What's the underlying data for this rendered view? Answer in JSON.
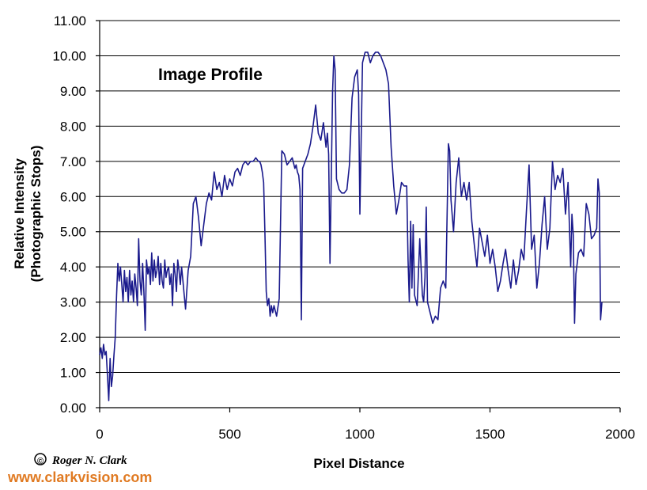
{
  "chart_data": {
    "type": "line",
    "title": "Image Profile",
    "xlabel": "Pixel Distance",
    "ylabel_line1": "Relative Intensity",
    "ylabel_line2": "(Photographic Stops)",
    "xlim": [
      0,
      2000
    ],
    "ylim": [
      0,
      11
    ],
    "xticks": [
      "0",
      "500",
      "1000",
      "1500",
      "2000"
    ],
    "yticks": [
      "0.00",
      "1.00",
      "2.00",
      "3.00",
      "4.00",
      "5.00",
      "6.00",
      "7.00",
      "8.00",
      "9.00",
      "10.00",
      "11.00"
    ],
    "grid": "horizontal",
    "line_color": "#1a1a8c",
    "series": [
      {
        "x": [
          0,
          5,
          10,
          15,
          20,
          25,
          30,
          35,
          40,
          45,
          50,
          55,
          60,
          65,
          70,
          75,
          80,
          85,
          90,
          95,
          100,
          105,
          110,
          115,
          120,
          125,
          130,
          135,
          140,
          145,
          150,
          155,
          160,
          165,
          170,
          175,
          180,
          185,
          190,
          195,
          200,
          205,
          210,
          215,
          220,
          225,
          230,
          235,
          240,
          245,
          250,
          255,
          260,
          265,
          270,
          275,
          280,
          285,
          290,
          295,
          300,
          305,
          310,
          315,
          320,
          325,
          330,
          340,
          350,
          360,
          370,
          380,
          390,
          400,
          410,
          420,
          430,
          440,
          450,
          460,
          470,
          480,
          490,
          500,
          510,
          520,
          530,
          540,
          550,
          560,
          570,
          580,
          590,
          600,
          610,
          615,
          620,
          625,
          630,
          635,
          640,
          645,
          650,
          655,
          660,
          665,
          670,
          680,
          690,
          700,
          710,
          720,
          730,
          740,
          750,
          755,
          760,
          765,
          770,
          775,
          780,
          790,
          800,
          810,
          820,
          830,
          840,
          850,
          860,
          870,
          875,
          880,
          885,
          890,
          895,
          900,
          905,
          910,
          920,
          930,
          940,
          950,
          960,
          970,
          980,
          990,
          995,
          1000,
          1005,
          1010,
          1020,
          1030,
          1040,
          1050,
          1060,
          1070,
          1080,
          1090,
          1100,
          1110,
          1120,
          1130,
          1140,
          1150,
          1160,
          1170,
          1180,
          1185,
          1190,
          1195,
          1200,
          1205,
          1210,
          1220,
          1230,
          1240,
          1245,
          1250,
          1255,
          1260,
          1270,
          1280,
          1290,
          1300,
          1310,
          1320,
          1330,
          1340,
          1345,
          1350,
          1360,
          1370,
          1380,
          1390,
          1400,
          1410,
          1420,
          1430,
          1440,
          1450,
          1460,
          1470,
          1480,
          1490,
          1500,
          1510,
          1520,
          1530,
          1540,
          1550,
          1560,
          1570,
          1580,
          1590,
          1600,
          1610,
          1620,
          1630,
          1640,
          1650,
          1660,
          1670,
          1680,
          1690,
          1700,
          1710,
          1720,
          1730,
          1740,
          1750,
          1760,
          1770,
          1780,
          1790,
          1800,
          1810,
          1815,
          1820,
          1825,
          1830,
          1840,
          1850,
          1860,
          1870,
          1880,
          1890,
          1900,
          1910,
          1915,
          1920,
          1925,
          1930
        ],
        "y": [
          1.5,
          1.7,
          1.4,
          1.8,
          1.5,
          1.6,
          0.9,
          0.2,
          1.4,
          0.6,
          0.9,
          1.5,
          2.0,
          3.2,
          4.1,
          3.6,
          4.0,
          3.5,
          3.0,
          3.9,
          3.3,
          3.7,
          3.0,
          3.9,
          3.2,
          3.6,
          3.0,
          3.8,
          3.4,
          2.9,
          4.8,
          3.6,
          3.2,
          4.1,
          3.3,
          2.2,
          4.2,
          3.8,
          4.0,
          3.5,
          4.4,
          3.6,
          4.2,
          3.7,
          3.9,
          4.3,
          3.5,
          4.1,
          3.6,
          3.4,
          4.2,
          3.7,
          3.9,
          4.0,
          3.5,
          3.8,
          2.9,
          4.1,
          3.8,
          3.3,
          4.2,
          3.9,
          3.5,
          4.0,
          3.6,
          3.2,
          2.8,
          3.9,
          4.3,
          5.8,
          6.0,
          5.4,
          4.6,
          5.2,
          5.8,
          6.1,
          5.9,
          6.7,
          6.2,
          6.4,
          6.0,
          6.6,
          6.2,
          6.5,
          6.3,
          6.7,
          6.8,
          6.6,
          6.9,
          7.0,
          6.9,
          7.0,
          7.0,
          7.1,
          7.0,
          7.0,
          6.9,
          6.7,
          6.4,
          5.0,
          3.3,
          2.9,
          3.1,
          2.6,
          2.9,
          2.7,
          2.9,
          2.6,
          3.1,
          7.3,
          7.2,
          6.9,
          7.0,
          7.1,
          6.8,
          6.9,
          6.7,
          6.6,
          6.2,
          2.5,
          6.8,
          7.0,
          7.2,
          7.5,
          8.0,
          8.6,
          7.8,
          7.6,
          8.1,
          7.4,
          7.8,
          7.2,
          4.1,
          6.5,
          9.0,
          10.0,
          9.6,
          6.5,
          6.2,
          6.1,
          6.1,
          6.2,
          6.9,
          8.8,
          9.4,
          9.6,
          8.9,
          5.5,
          7.6,
          9.8,
          10.1,
          10.1,
          9.8,
          10.0,
          10.1,
          10.1,
          10.0,
          9.8,
          9.6,
          9.2,
          7.4,
          6.3,
          5.5,
          5.9,
          6.4,
          6.3,
          6.3,
          4.2,
          3.0,
          5.3,
          3.4,
          5.2,
          3.2,
          2.9,
          4.8,
          3.2,
          3.0,
          3.7,
          5.7,
          3.0,
          2.7,
          2.4,
          2.6,
          2.5,
          3.4,
          3.6,
          3.4,
          7.5,
          7.3,
          5.9,
          5.0,
          6.4,
          7.1,
          6.0,
          6.4,
          5.9,
          6.4,
          5.3,
          4.6,
          4.0,
          5.1,
          4.7,
          4.3,
          4.9,
          4.1,
          4.5,
          4.0,
          3.3,
          3.6,
          4.1,
          4.5,
          3.9,
          3.4,
          4.2,
          3.5,
          3.9,
          4.5,
          4.2,
          5.6,
          6.9,
          4.5,
          4.9,
          3.4,
          4.1,
          5.2,
          6.0,
          4.5,
          5.1,
          7.0,
          6.2,
          6.6,
          6.4,
          6.8,
          5.5,
          6.4,
          4.0,
          5.5,
          4.9,
          2.4,
          3.8,
          4.4,
          4.5,
          4.3,
          5.8,
          5.5,
          4.8,
          4.9,
          5.1,
          6.5,
          6.1,
          2.5,
          3.0
        ]
      }
    ]
  },
  "footer": {
    "copyright_symbol": "©",
    "author": "Roger N. Clark",
    "website": "www.clarkvision.com"
  }
}
